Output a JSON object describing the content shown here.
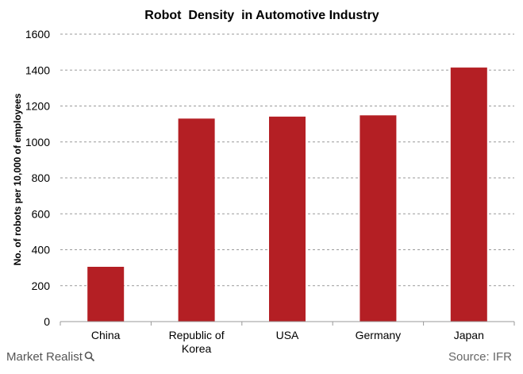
{
  "chart_data": {
    "type": "bar",
    "title": "Robot  Density  in Automotive Industry",
    "xlabel": "",
    "ylabel": "No. of robots per 10,000 of employees",
    "categories": [
      [
        "China"
      ],
      [
        "Republic of",
        "Korea"
      ],
      [
        "USA"
      ],
      [
        "Germany"
      ],
      [
        "Japan"
      ]
    ],
    "values": [
      305,
      1130,
      1141,
      1148,
      1414
    ],
    "ylim": [
      0,
      1600
    ],
    "yticks": [
      0,
      200,
      400,
      600,
      800,
      1000,
      1200,
      1400,
      1600
    ],
    "grid": true,
    "legend": "none",
    "bar_color": "#B41F24"
  },
  "footer": {
    "brand": "Market Realist",
    "source": "Source: IFR"
  },
  "icons": {
    "brand_mark": "magnifier-icon"
  }
}
